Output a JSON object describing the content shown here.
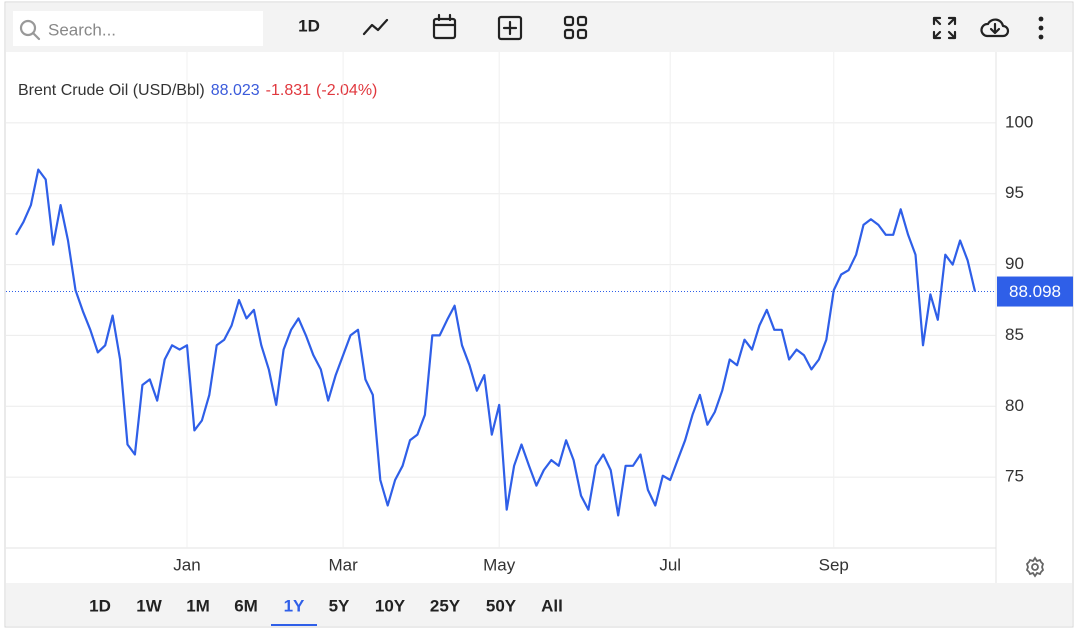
{
  "toolbar": {
    "search_placeholder": "Search...",
    "interval": "1D"
  },
  "ranges": [
    "1D",
    "1W",
    "1M",
    "6M",
    "1Y",
    "5Y",
    "10Y",
    "25Y",
    "50Y",
    "All"
  ],
  "active_range": "1Y",
  "chart_data": {
    "type": "line",
    "title": "Brent Crude Oil (USD/Bbl)",
    "last_price": 88.023,
    "change": -1.831,
    "change_percent": {
      "value": -2.04,
      "label": "(-2.04%)"
    },
    "current_value": 88.098,
    "color": "#2f5fe8",
    "categories": [
      null,
      null,
      null,
      null,
      null,
      null,
      null,
      null,
      null,
      null,
      null,
      null,
      null,
      null,
      null,
      null,
      null,
      null,
      null,
      null,
      null,
      null,
      null,
      "Jan",
      null,
      null,
      null,
      null,
      null,
      null,
      null,
      null,
      null,
      null,
      null,
      null,
      null,
      null,
      null,
      null,
      null,
      null,
      null,
      null,
      "Mar",
      null,
      null,
      null,
      null,
      null,
      null,
      null,
      null,
      null,
      null,
      null,
      null,
      null,
      null,
      null,
      null,
      null,
      null,
      null,
      null,
      "May",
      null,
      null,
      null,
      null,
      null,
      null,
      null,
      null,
      null,
      null,
      null,
      null,
      null,
      null,
      null,
      null,
      null,
      null,
      null,
      null,
      null,
      null,
      "Jul",
      null,
      null,
      null,
      null,
      null,
      null,
      null,
      null,
      null,
      null,
      null,
      null,
      null,
      null,
      null,
      null,
      null,
      null,
      null,
      null,
      null,
      "Sep",
      null,
      null,
      null,
      null,
      null,
      null,
      null,
      null,
      null,
      null,
      null,
      null,
      null,
      null,
      null,
      null,
      null,
      null,
      null
    ],
    "values": [
      92.1,
      93.0,
      94.2,
      96.7,
      96.0,
      91.4,
      94.2,
      91.7,
      88.2,
      86.7,
      85.4,
      83.8,
      84.3,
      86.4,
      83.3,
      77.3,
      76.6,
      81.5,
      81.9,
      80.4,
      83.3,
      84.3,
      84.0,
      84.3,
      78.3,
      79.0,
      80.8,
      84.3,
      84.7,
      85.7,
      87.5,
      86.2,
      86.8,
      84.3,
      82.6,
      80.1,
      84.0,
      85.4,
      86.2,
      85.0,
      83.6,
      82.6,
      80.4,
      82.2,
      83.6,
      85.0,
      85.4,
      81.9,
      80.8,
      74.8,
      73.0,
      74.8,
      75.8,
      77.6,
      78.0,
      79.4,
      85.0,
      85.0,
      86.1,
      87.1,
      84.3,
      82.9,
      81.1,
      82.2,
      78.0,
      80.1,
      72.7,
      75.8,
      77.3,
      75.8,
      74.4,
      75.5,
      76.2,
      75.8,
      77.6,
      76.2,
      73.7,
      72.7,
      75.8,
      76.6,
      75.5,
      72.3,
      75.8,
      75.8,
      76.6,
      74.1,
      73.0,
      75.1,
      74.8,
      76.2,
      77.6,
      79.4,
      80.8,
      78.7,
      79.6,
      81.1,
      83.3,
      82.9,
      84.7,
      84.0,
      85.7,
      86.8,
      85.4,
      85.4,
      83.3,
      84.0,
      83.6,
      82.6,
      83.3,
      84.7,
      88.2,
      89.3,
      89.6,
      90.7,
      92.8,
      93.2,
      92.8,
      92.1,
      92.1,
      93.9,
      92.1,
      90.7,
      84.3,
      87.9,
      86.1,
      90.7,
      90.0,
      91.7,
      90.3,
      88.1
    ],
    "ylim": [
      70,
      105
    ],
    "yticks": [
      75,
      80,
      85,
      90,
      95,
      100
    ],
    "grid": true
  }
}
